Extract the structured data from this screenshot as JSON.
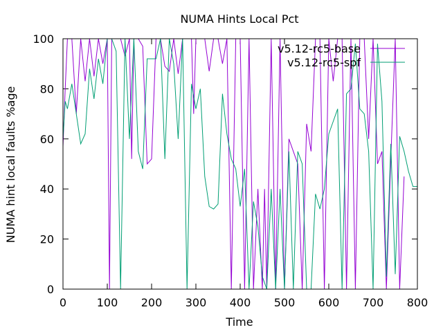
{
  "chart_data": {
    "type": "line",
    "title": "NUMA Hints Local Pct",
    "xlabel": "Time",
    "ylabel": "NUMA hint local faults %age",
    "xlim": [
      0,
      800
    ],
    "ylim": [
      0,
      100
    ],
    "xticks": [
      "0",
      "100",
      "200",
      "300",
      "400",
      "500",
      "600",
      "700",
      "800"
    ],
    "yticks": [
      "0",
      "20",
      "40",
      "60",
      "80",
      "100"
    ],
    "grid": false,
    "legend": "top-right",
    "series": [
      {
        "name": "v5.12-rc5-base",
        "color": "#9400d3",
        "x": [
          0,
          5,
          10,
          20,
          30,
          40,
          50,
          60,
          70,
          80,
          90,
          100,
          105,
          110,
          120,
          130,
          140,
          150,
          155,
          160,
          170,
          180,
          190,
          195,
          200,
          210,
          220,
          230,
          240,
          250,
          260,
          270,
          280,
          290,
          295,
          300,
          310,
          320,
          330,
          340,
          350,
          360,
          370,
          380,
          390,
          400,
          410,
          420,
          430,
          440,
          450,
          455,
          460,
          470,
          480,
          490,
          500,
          510,
          520,
          530,
          540,
          550,
          560,
          570,
          580,
          590,
          600,
          610,
          620,
          630,
          640,
          650,
          660,
          670,
          680,
          690,
          700,
          710,
          720,
          730,
          740,
          750,
          760,
          770
        ],
        "y": [
          57,
          80,
          100,
          100,
          70,
          100,
          83,
          100,
          85,
          100,
          90,
          100,
          0,
          100,
          100,
          100,
          93,
          100,
          52,
          100,
          100,
          97,
          50,
          51,
          52,
          100,
          100,
          89,
          87,
          100,
          86,
          100,
          100,
          100,
          70,
          100,
          100,
          100,
          87,
          100,
          100,
          90,
          100,
          0,
          100,
          100,
          0,
          100,
          0,
          40,
          0,
          40,
          0,
          100,
          0,
          100,
          0,
          60,
          55,
          50,
          0,
          66,
          55,
          100,
          100,
          0,
          100,
          83,
          100,
          100,
          0,
          100,
          0,
          100,
          100,
          60,
          100,
          50,
          55,
          0,
          52,
          100,
          0,
          45
        ]
      },
      {
        "name": "v5.12-rc5-spf",
        "color": "#009e73",
        "x": [
          0,
          5,
          10,
          20,
          30,
          40,
          50,
          60,
          70,
          80,
          90,
          100,
          110,
          120,
          130,
          140,
          150,
          160,
          170,
          180,
          190,
          200,
          210,
          220,
          230,
          240,
          250,
          260,
          270,
          280,
          290,
          300,
          310,
          320,
          330,
          340,
          350,
          360,
          370,
          380,
          390,
          400,
          410,
          420,
          430,
          440,
          450,
          460,
          470,
          480,
          490,
          500,
          510,
          520,
          530,
          540,
          550,
          560,
          570,
          580,
          590,
          600,
          610,
          620,
          630,
          640,
          650,
          660,
          670,
          680,
          690,
          700,
          710,
          720,
          730,
          740,
          750,
          760,
          770,
          780,
          790,
          800
        ],
        "y": [
          60,
          75,
          72,
          82,
          70,
          58,
          62,
          88,
          76,
          92,
          82,
          100,
          100,
          95,
          0,
          100,
          60,
          100,
          55,
          48,
          92,
          92,
          92,
          100,
          52,
          100,
          90,
          60,
          100,
          0,
          82,
          72,
          80,
          45,
          33,
          32,
          34,
          78,
          62,
          52,
          48,
          33,
          48,
          0,
          35,
          25,
          5,
          0,
          40,
          0,
          40,
          0,
          55,
          0,
          55,
          50,
          0,
          0,
          38,
          32,
          40,
          62,
          67,
          72,
          0,
          78,
          80,
          98,
          72,
          70,
          55,
          0,
          98,
          75,
          5,
          58,
          6,
          61,
          55,
          47,
          41,
          41
        ]
      }
    ]
  }
}
